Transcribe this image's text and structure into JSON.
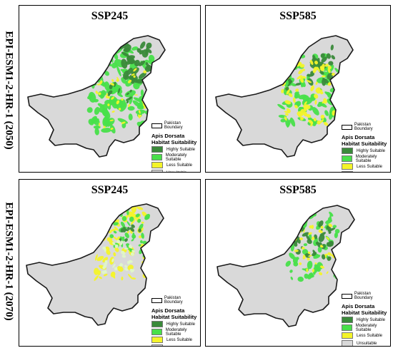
{
  "row_labels": [
    "EPI-ESM1-2-HR-1 (2050)",
    "EPI-ESM1-2-HR-1 (2070)"
  ],
  "panels": [
    {
      "title": "SSP245",
      "period": "2050",
      "scenario": "SSP245"
    },
    {
      "title": "SSP585",
      "period": "2050",
      "scenario": "SSP585"
    },
    {
      "title": "SSP245",
      "period": "2070",
      "scenario": "SSP245"
    },
    {
      "title": "SSP585",
      "period": "2070",
      "scenario": "SSP585"
    }
  ],
  "legend": {
    "boundary_label": "Pakistan Boundary",
    "title_line1": "Apis Dorsata",
    "title_line2": "Habitat Suitability",
    "classes": [
      {
        "label": "Highly Suitable",
        "color": "#3a8a3a"
      },
      {
        "label": "Moderately Suitable",
        "color": "#48e04a"
      },
      {
        "label": "Less Suitable",
        "color": "#f4f42a"
      },
      {
        "label": "Unsuitable",
        "color": "#d9d9d9"
      }
    ]
  },
  "colors": {
    "unsuitable": "#d9d9d9",
    "boundary": "#1a1a1a"
  }
}
